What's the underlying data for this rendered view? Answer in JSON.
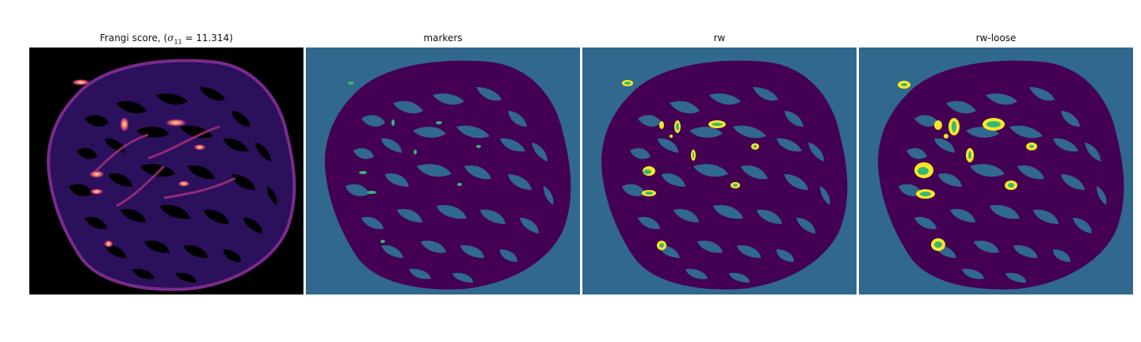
{
  "figure": {
    "panels": [
      {
        "id": "frangi",
        "title_prefix": "Frangi score, (",
        "title_symbol": "σ",
        "title_subscript": "11",
        "title_suffix": " = 11.314)",
        "background_color": "#000000",
        "colormap": "magma"
      },
      {
        "id": "markers",
        "title": "markers",
        "background_color": "#31688e",
        "tissue_color": "#440154",
        "marker_color": "#35b779"
      },
      {
        "id": "rw",
        "title": "rw",
        "background_color": "#31688e",
        "tissue_color": "#440154",
        "vessel_color": "#fde725",
        "core_color": "#35b779"
      },
      {
        "id": "rw-loose",
        "title": "rw-loose",
        "background_color": "#31688e",
        "tissue_color": "#440154",
        "vessel_color": "#fde725",
        "core_color": "#35b779"
      }
    ]
  }
}
